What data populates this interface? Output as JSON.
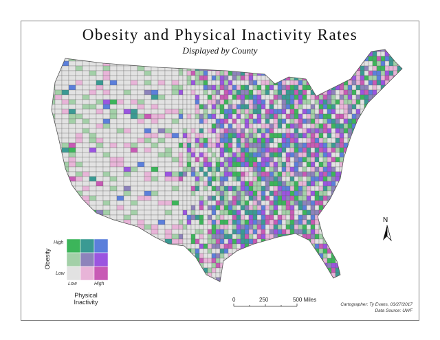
{
  "title": "Obesity and Physical Inactivity Rates",
  "subtitle": "Displayed by County",
  "legend": {
    "y_axis": "Obesity",
    "x_axis_line1": "Physical",
    "x_axis_line2": "Inactivity",
    "y_high": "High",
    "y_low": "Low",
    "x_low": "Low",
    "x_high": "High",
    "colors": [
      [
        "#3cb55a",
        "#3a9a93",
        "#5b7fdb"
      ],
      [
        "#a3d0a8",
        "#8d83bb",
        "#9b55e0"
      ],
      [
        "#e2e2e2",
        "#e8b4d8",
        "#c85ab5"
      ]
    ]
  },
  "scale_bar": {
    "t0": "0",
    "t1": "250",
    "t2": "500 Miles"
  },
  "north_arrow": {
    "label": "N"
  },
  "credits": {
    "cartographer": "Cartographer: Ty Evans, 03/27/2017",
    "source": "Data Source: UWF"
  }
}
